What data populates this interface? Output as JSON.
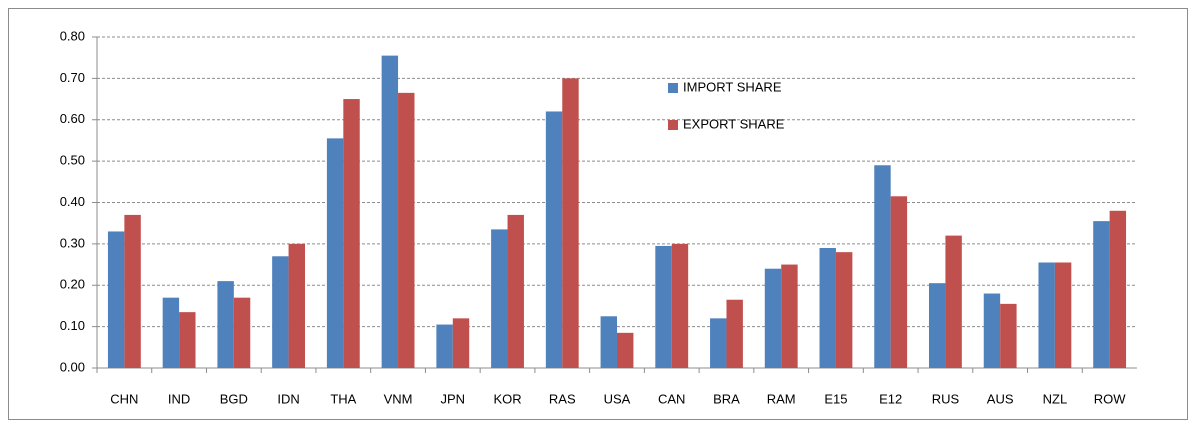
{
  "chart_data": {
    "type": "bar",
    "categories": [
      "CHN",
      "IND",
      "BGD",
      "IDN",
      "THA",
      "VNM",
      "JPN",
      "KOR",
      "RAS",
      "USA",
      "CAN",
      "BRA",
      "RAM",
      "E15",
      "E12",
      "RUS",
      "AUS",
      "NZL",
      "ROW"
    ],
    "series": [
      {
        "name": "IMPORT SHARE",
        "color": "#4f81bd",
        "values": [
          0.33,
          0.17,
          0.21,
          0.27,
          0.555,
          0.755,
          0.105,
          0.335,
          0.62,
          0.125,
          0.295,
          0.12,
          0.24,
          0.29,
          0.49,
          0.205,
          0.18,
          0.255,
          0.355
        ]
      },
      {
        "name": "EXPORT SHARE",
        "color": "#c0504d",
        "values": [
          0.37,
          0.135,
          0.17,
          0.3,
          0.65,
          0.665,
          0.12,
          0.37,
          0.7,
          0.085,
          0.3,
          0.165,
          0.25,
          0.28,
          0.415,
          0.32,
          0.155,
          0.255,
          0.38
        ]
      }
    ],
    "ylim": [
      0,
      0.8
    ],
    "yticks": [
      {
        "value": 0,
        "label": "0.00"
      },
      {
        "value": 0.1,
        "label": "0.10"
      },
      {
        "value": 0.2,
        "label": "0.20"
      },
      {
        "value": 0.3,
        "label": "0.30"
      },
      {
        "value": 0.4,
        "label": "0.40"
      },
      {
        "value": 0.5,
        "label": "0.50"
      },
      {
        "value": 0.6,
        "label": "0.60"
      },
      {
        "value": 0.7,
        "label": "0.70"
      },
      {
        "value": 0.8,
        "label": "0.80"
      }
    ],
    "grid": true,
    "legend": "top-center"
  }
}
